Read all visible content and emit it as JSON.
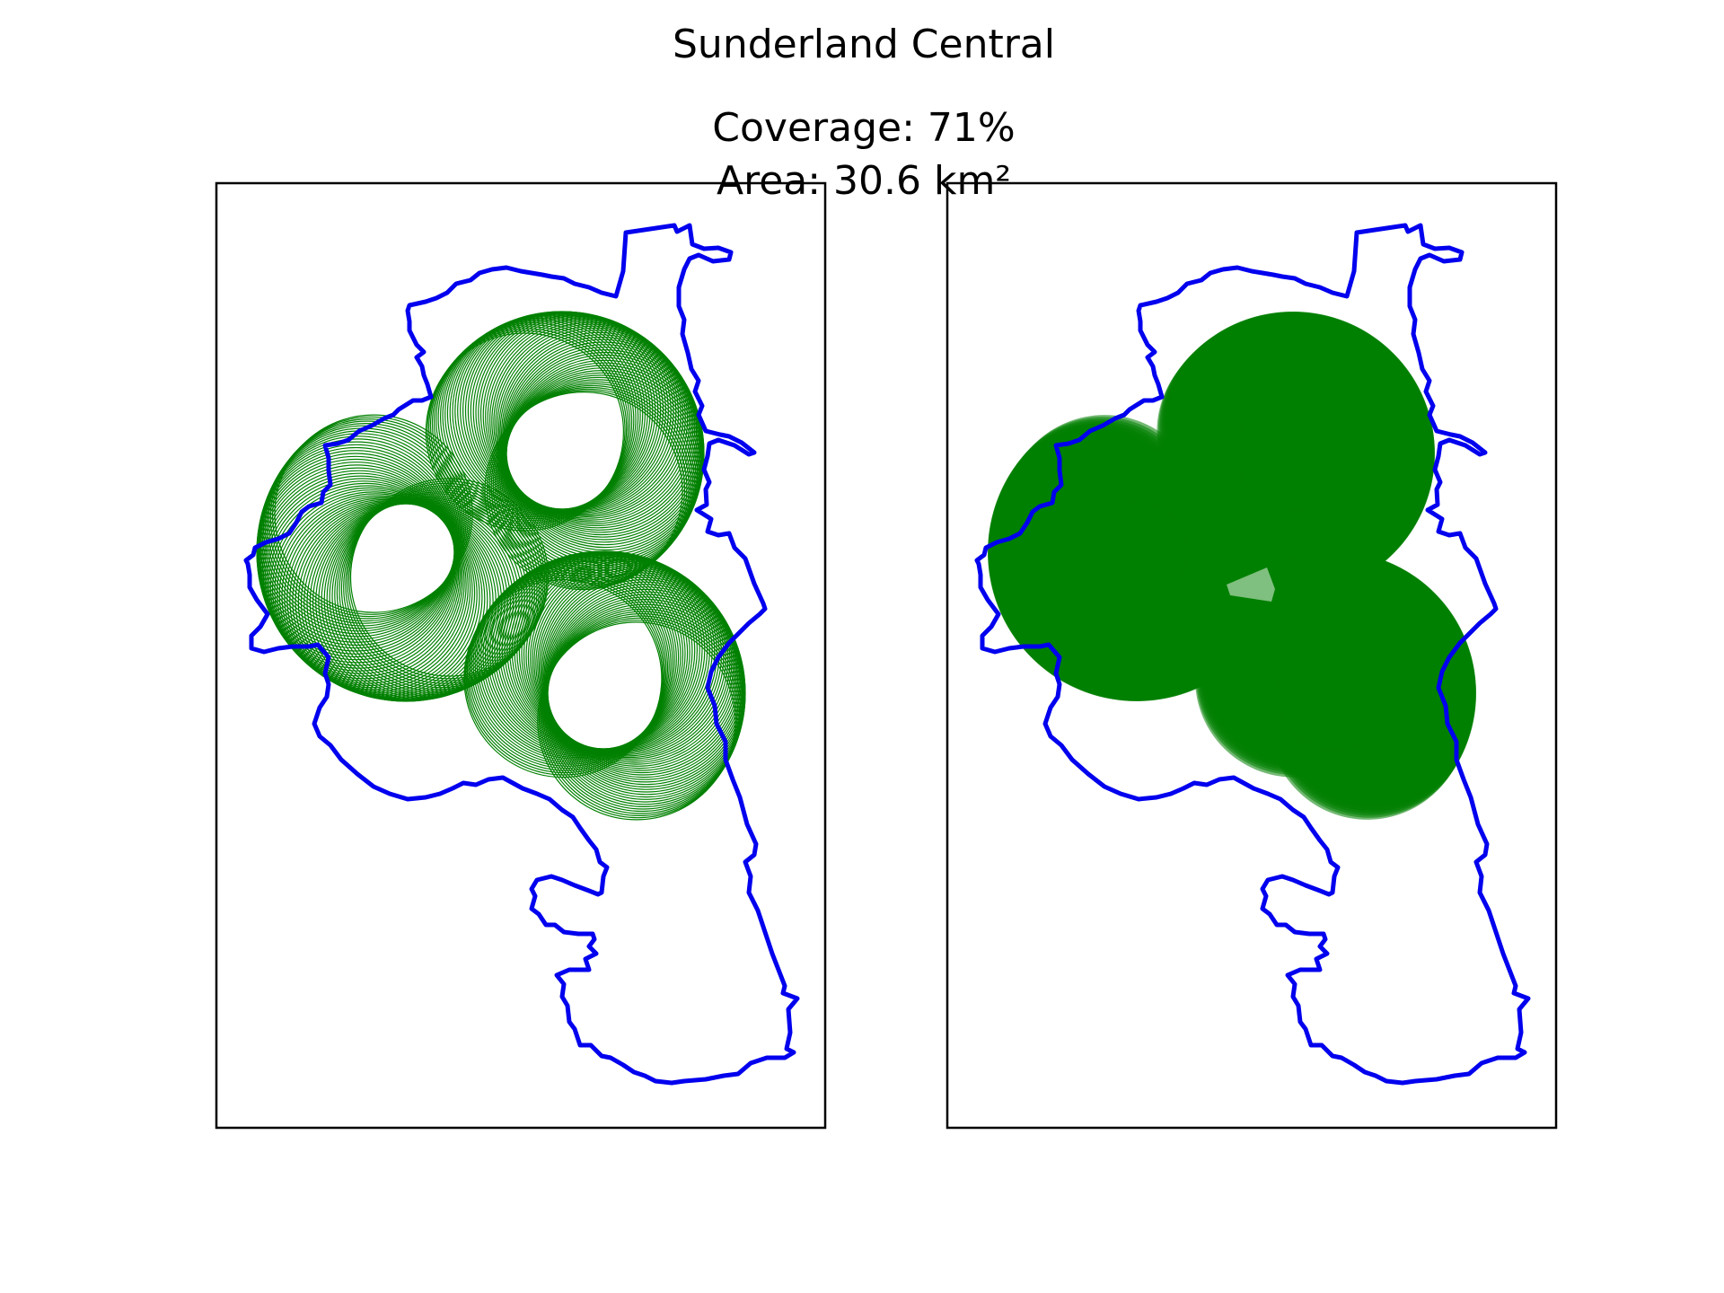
{
  "title": "Sunderland Central",
  "stats": {
    "coverage": "Coverage: 71%",
    "area": "Area: 30.6 km²"
  },
  "colors": {
    "boundary": "#0000ee",
    "coverage": "#008000",
    "frame": "#000000",
    "background": "#ffffff"
  },
  "panels": [
    {
      "name": "circle-outlines-panel",
      "style": "outline"
    },
    {
      "name": "coverage-union-panel",
      "style": "filled"
    }
  ]
}
